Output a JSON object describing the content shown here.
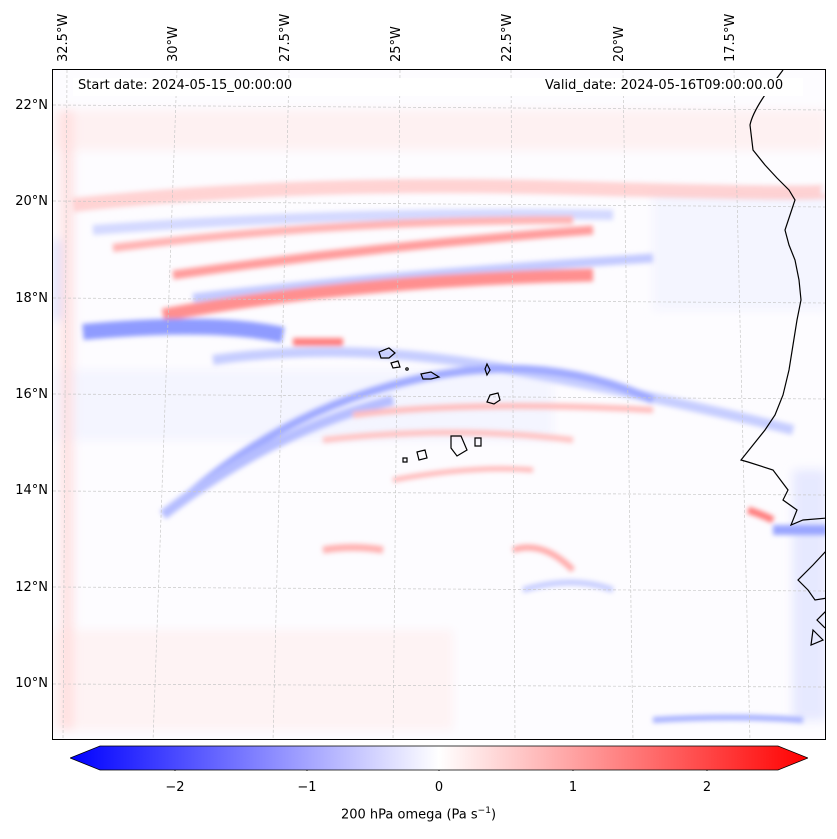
{
  "header": {
    "start_date": "Start date: 2024-05-15_00:00:00",
    "valid_date": "Valid_date: 2024-05-16T09:00:00.00"
  },
  "longitude_labels": [
    "32.5°W",
    "30°W",
    "27.5°W",
    "25°W",
    "22.5°W",
    "20°W",
    "17.5°W"
  ],
  "latitude_labels": [
    "22°N",
    "20°N",
    "18°N",
    "16°N",
    "14°N",
    "12°N",
    "10°N"
  ],
  "colorbar": {
    "ticks": [
      "−2",
      "−1",
      "0",
      "1",
      "2"
    ],
    "label_prefix": "200 hPa omega (Pa s",
    "label_exp": "−1",
    "label_suffix": ")",
    "min_color": "#0000ff",
    "mid_color": "#ffffff",
    "max_color": "#ff0000"
  },
  "colors": {
    "coastline": "#000000",
    "gridline": "#bbbbbb",
    "positive": "#ff0000",
    "negative": "#0000ff"
  }
}
